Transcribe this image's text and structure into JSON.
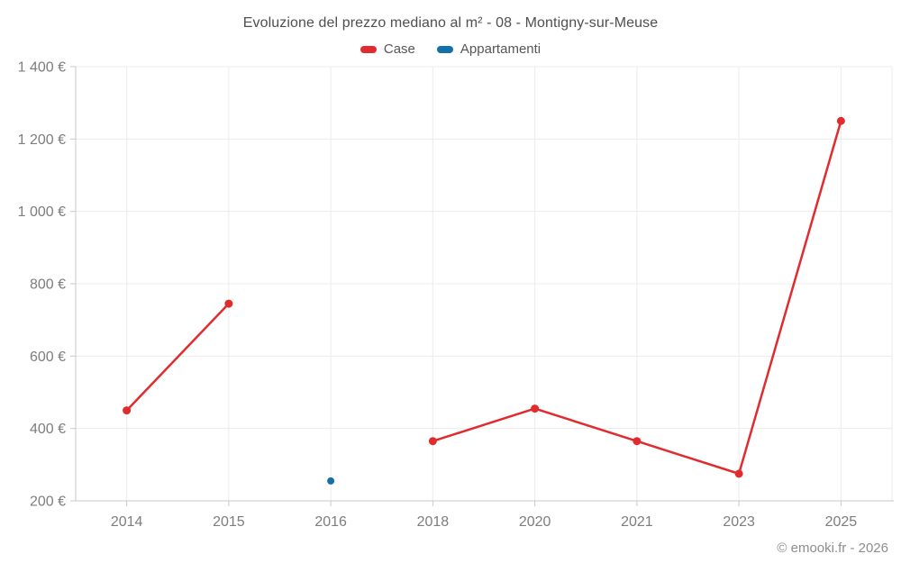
{
  "chart": {
    "title": "Evoluzione del prezzo mediano al m² - 08 - Montigny-sur-Meuse",
    "copyright": "© emooki.fr - 2026"
  },
  "chart_data": {
    "type": "line",
    "title": "Evoluzione del prezzo mediano al m² - 08 - Montigny-sur-Meuse",
    "xlabel": "",
    "ylabel": "",
    "categories": [
      "2014",
      "2015",
      "2016",
      "2018",
      "2020",
      "2021",
      "2023",
      "2025"
    ],
    "series": [
      {
        "name": "Case",
        "color": "#e02c2e",
        "marker_radius": 4.5,
        "values": [
          450,
          745,
          null,
          365,
          455,
          365,
          275,
          1250
        ]
      },
      {
        "name": "Appartamenti",
        "color": "#1370a8",
        "marker_radius": 4,
        "values": [
          null,
          null,
          255,
          null,
          null,
          null,
          null,
          null
        ]
      }
    ],
    "ylim": [
      200,
      1400
    ],
    "ytick_step": 200,
    "ytick_labels": [
      "200 €",
      "400 €",
      "600 €",
      "800 €",
      "1 000 €",
      "1 200 €",
      "1 400 €"
    ],
    "currency_suffix": "€",
    "grid": true,
    "legend_position": "top",
    "colors": {
      "grid": "#ececec",
      "axis": "#c9c9c9",
      "tick_label": "#7d7d7d",
      "title_text": "#4f4f4f",
      "legend_text": "#565656",
      "copyright_text": "#8d8d8d"
    }
  }
}
